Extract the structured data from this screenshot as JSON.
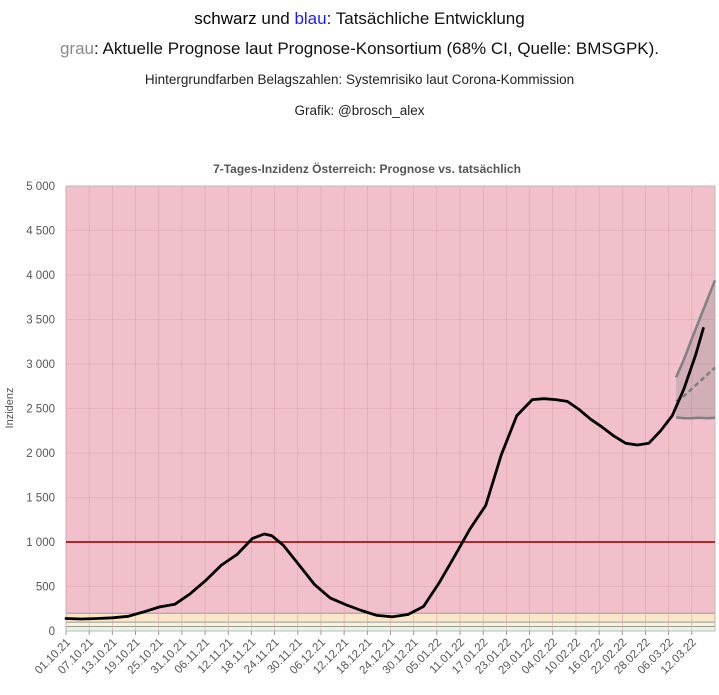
{
  "header": {
    "line1": {
      "black": "schwarz",
      "und": " und ",
      "blue": "blau",
      "rest": ": Tatsächliche Entwicklung"
    },
    "line2": {
      "grey": "grau",
      "rest": ": Aktuelle Prognose laut Prognose-Konsortium (68% CI, Quelle: BMSGPK)."
    },
    "line3": "Hintergrundfarben Belagszahlen: Systemrisiko laut Corona-Kommission",
    "line4": "Grafik: @brosch_alex"
  },
  "colors": {
    "actual": "#000000",
    "forecast": "#808080",
    "threshold_line": "#a31515",
    "band_high": "#f1c0cb",
    "band_mid_high": "#fae6c8",
    "band_mid_low": "#f7f4d9",
    "band_low": "#e9f3e6"
  },
  "chart_data": {
    "type": "line",
    "title": "7-Tages-Inzidenz Österreich: Prognose vs. tatsächlich",
    "ylabel": "Inzidenz",
    "xlabel": "",
    "ylim": [
      0,
      5000
    ],
    "xlim": [
      "2021-10-01",
      "2022-03-17"
    ],
    "y_ticks": [
      0,
      500,
      1000,
      1500,
      2000,
      2500,
      3000,
      3500,
      4000,
      4500,
      5000
    ],
    "y_tick_labels": [
      "0",
      "500",
      "1 000",
      "1 500",
      "2 000",
      "2 500",
      "3 000",
      "3 500",
      "4 000",
      "4 500",
      "5 000"
    ],
    "x_tick_labels": [
      "01.10.21",
      "07.10.21",
      "13.10.21",
      "19.10.21",
      "25.10.21",
      "31.10.21",
      "06.11.21",
      "12.11.21",
      "18.11.21",
      "24.11.21",
      "30.11.21",
      "06.12.21",
      "12.12.21",
      "18.12.21",
      "24.12.21",
      "30.12.21",
      "05.01.22",
      "11.01.22",
      "17.01.22",
      "23.01.22",
      "29.01.22",
      "04.02.22",
      "10.02.22",
      "16.02.22",
      "22.02.22",
      "28.02.22",
      "06.03.22",
      "12.03.22"
    ],
    "grid": true,
    "legend": "none",
    "background_bands": [
      {
        "from": 0,
        "to": 50
      },
      {
        "from": 50,
        "to": 100
      },
      {
        "from": 100,
        "to": 200
      },
      {
        "from": 200,
        "to": 5000
      }
    ],
    "threshold": 1000,
    "series": [
      {
        "x": [
          "2021-10-01",
          "2021-10-05",
          "2021-10-09",
          "2021-10-13",
          "2021-10-17",
          "2021-10-21",
          "2021-10-25",
          "2021-10-29",
          "2021-11-02",
          "2021-11-06",
          "2021-11-10",
          "2021-11-14",
          "2021-11-18",
          "2021-11-21",
          "2021-11-23",
          "2021-11-26",
          "2021-11-30",
          "2021-12-04",
          "2021-12-08",
          "2021-12-12",
          "2021-12-16",
          "2021-12-20",
          "2021-12-24",
          "2021-12-28",
          "2022-01-01",
          "2022-01-05",
          "2022-01-09",
          "2022-01-13",
          "2022-01-17",
          "2022-01-21",
          "2022-01-25",
          "2022-01-29",
          "2022-02-01",
          "2022-02-04",
          "2022-02-07",
          "2022-02-10",
          "2022-02-13",
          "2022-02-16",
          "2022-02-19",
          "2022-02-22",
          "2022-02-25",
          "2022-02-28",
          "2022-03-03",
          "2022-03-06",
          "2022-03-09",
          "2022-03-12",
          "2022-03-14"
        ],
        "values": [
          140,
          135,
          140,
          148,
          165,
          215,
          270,
          300,
          420,
          570,
          740,
          860,
          1040,
          1090,
          1070,
          960,
          740,
          520,
          370,
          295,
          230,
          175,
          160,
          185,
          275,
          540,
          840,
          1150,
          1410,
          1980,
          2420,
          2600,
          2610,
          2600,
          2580,
          2490,
          2380,
          2290,
          2190,
          2110,
          2090,
          2110,
          2250,
          2420,
          2720,
          3100,
          3400
        ]
      },
      {
        "x": [
          "2022-03-07",
          "2022-03-09",
          "2022-03-11",
          "2022-03-13",
          "2022-03-15",
          "2022-03-17"
        ],
        "values": [
          2580,
          2640,
          2720,
          2800,
          2880,
          2960
        ]
      },
      {
        "x": [
          "2022-03-07",
          "2022-03-09",
          "2022-03-11",
          "2022-03-13",
          "2022-03-15",
          "2022-03-17"
        ],
        "values": [
          2850,
          3050,
          3280,
          3500,
          3720,
          3940
        ]
      },
      {
        "x": [
          "2022-03-07",
          "2022-03-09",
          "2022-03-11",
          "2022-03-13",
          "2022-03-15",
          "2022-03-17"
        ],
        "values": [
          2400,
          2390,
          2390,
          2395,
          2390,
          2395
        ]
      }
    ]
  }
}
